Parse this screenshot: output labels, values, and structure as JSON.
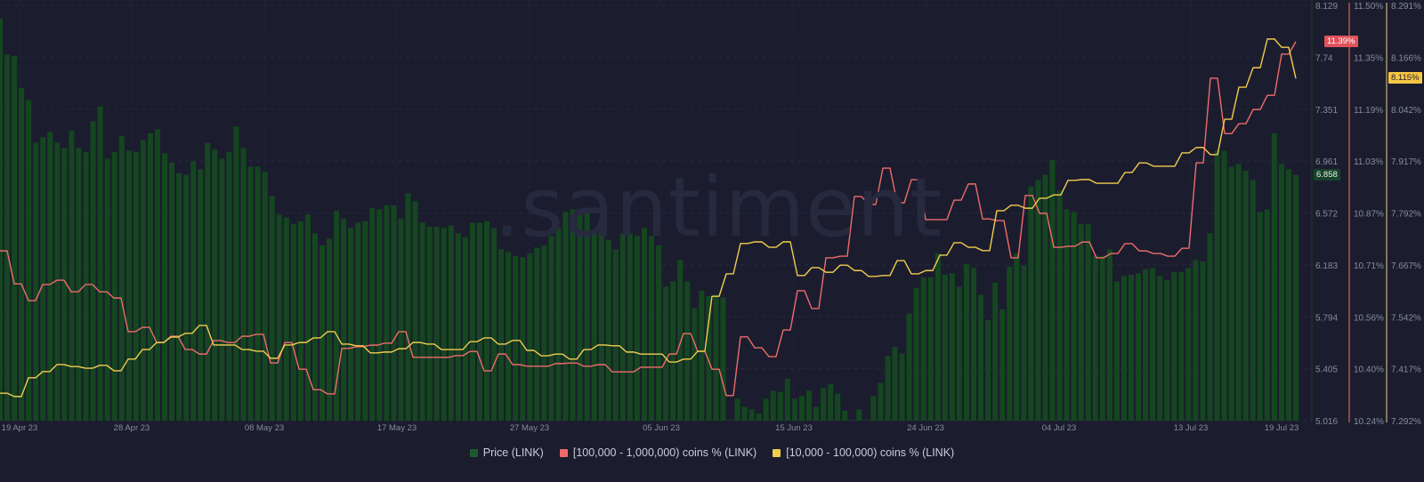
{
  "chart_data": {
    "type": "bar+line",
    "watermark": ".santiment",
    "x_tick_labels": [
      "19 Apr 23",
      "28 Apr 23",
      "08 May 23",
      "17 May 23",
      "27 May 23",
      "05 Jun 23",
      "15 Jun 23",
      "24 Jun 23",
      "04 Jul 23",
      "13 Jul 23",
      "19 Jul 23"
    ],
    "x_range": [
      "19 Apr 23",
      "19 Jul 23"
    ],
    "grid": true,
    "legend_position": "bottom",
    "axes": {
      "price": {
        "ticks": [
          "8.129",
          "7.74",
          "7.351",
          "6.961",
          "6.572",
          "6.183",
          "5.794",
          "5.405",
          "5.016"
        ],
        "ylim": [
          5.016,
          8.129
        ],
        "current_label": "6.858",
        "color": "#1f5a2c"
      },
      "whales_100k_1m": {
        "ticks": [
          "11.50%",
          "11.35%",
          "11.19%",
          "11.03%",
          "10.87%",
          "10.71%",
          "10.56%",
          "10.40%",
          "10.24%"
        ],
        "ylim": [
          10.24,
          11.5
        ],
        "current_label": "11.39%",
        "color": "#ef6b6b"
      },
      "holders_10k_100k": {
        "ticks": [
          "8.291%",
          "8.166%",
          "8.042%",
          "7.917%",
          "7.792%",
          "7.667%",
          "7.542%",
          "7.417%",
          "7.292%"
        ],
        "ylim": [
          7.292,
          8.291
        ],
        "current_label": "8.115%",
        "color": "#f2cc4e"
      }
    },
    "series": [
      {
        "name": "Price (LINK)",
        "type": "bar",
        "axis": "price",
        "color": "#14461f",
        "values": [
          8.03,
          7.76,
          7.75,
          7.51,
          7.42,
          7.1,
          7.14,
          7.18,
          7.1,
          7.06,
          7.19,
          7.06,
          7.03,
          7.26,
          7.37,
          6.98,
          7.03,
          7.15,
          7.04,
          7.03,
          7.12,
          7.17,
          7.2,
          7.02,
          6.95,
          6.87,
          6.86,
          6.96,
          6.9,
          7.1,
          7.05,
          6.98,
          7.03,
          7.22,
          7.06,
          6.92,
          6.92,
          6.88,
          6.7,
          6.56,
          6.54,
          6.49,
          6.51,
          6.56,
          6.42,
          6.33,
          6.38,
          6.59,
          6.53,
          6.46,
          6.5,
          6.51,
          6.61,
          6.6,
          6.63,
          6.63,
          6.53,
          6.72,
          6.66,
          6.5,
          6.47,
          6.47,
          6.46,
          6.48,
          6.42,
          6.39,
          6.5,
          6.5,
          6.51,
          6.46,
          6.3,
          6.28,
          6.25,
          6.24,
          6.27,
          6.31,
          6.33,
          6.4,
          6.46,
          6.58,
          6.6,
          6.6,
          6.58,
          6.44,
          6.44,
          6.37,
          6.3,
          6.42,
          6.42,
          6.4,
          6.46,
          6.4,
          6.33,
          6.02,
          6.06,
          6.22,
          6.06,
          5.86,
          5.99,
          5.95,
          5.96,
          5.94,
          5.02,
          5.18,
          5.12,
          5.1,
          5.07,
          5.18,
          5.24,
          5.23,
          5.33,
          5.18,
          5.2,
          5.24,
          5.12,
          5.26,
          5.29,
          5.22,
          5.09,
          5.02,
          5.1,
          5.02,
          5.2,
          5.3,
          5.5,
          5.57,
          5.52,
          5.82,
          6.01,
          6.09,
          6.09,
          6.27,
          6.11,
          6.12,
          6.02,
          6.19,
          6.16,
          5.96,
          5.77,
          6.05,
          5.85,
          6.17,
          6.27,
          6.18,
          6.77,
          6.82,
          6.86,
          6.97,
          6.74,
          6.6,
          6.58,
          6.49,
          6.49,
          6.25,
          6.25,
          6.3,
          6.06,
          6.1,
          6.11,
          6.12,
          6.15,
          6.16,
          6.1,
          6.07,
          6.13,
          6.13,
          6.16,
          6.22,
          6.21,
          6.42,
          7.04,
          7.04,
          6.92,
          6.94,
          6.89,
          6.82,
          6.58,
          6.6,
          7.17,
          6.94,
          6.9,
          6.858
        ]
      },
      {
        "name": "[100,000  - 1,000,000) coins % (LINK)",
        "type": "line",
        "axis": "whales_100k_1m",
        "color": "#ef6b6b",
        "values": [
          10.755,
          10.655,
          10.604,
          10.653,
          10.666,
          10.631,
          10.653,
          10.631,
          10.612,
          10.51,
          10.523,
          10.477,
          10.496,
          10.456,
          10.442,
          10.483,
          10.477,
          10.496,
          10.502,
          10.415,
          10.477,
          10.396,
          10.334,
          10.321,
          10.459,
          10.464,
          10.469,
          10.475,
          10.51,
          10.432,
          10.432,
          10.432,
          10.437,
          10.45,
          10.391,
          10.442,
          10.41,
          10.405,
          10.405,
          10.413,
          10.415,
          10.405,
          10.41,
          10.388,
          10.388,
          10.402,
          10.402,
          10.442,
          10.504,
          10.45,
          10.396,
          10.316,
          10.494,
          10.461,
          10.434,
          10.515,
          10.634,
          10.58,
          10.734,
          10.739,
          10.92,
          10.896,
          11.006,
          10.901,
          10.971,
          10.85,
          10.85,
          10.909,
          10.958,
          10.852,
          10.847,
          10.734,
          10.923,
          10.869,
          10.766,
          10.769,
          10.782,
          10.734,
          10.747,
          10.777,
          10.755,
          10.747,
          10.739,
          10.763,
          11.022,
          11.279,
          11.111,
          11.141,
          11.184,
          11.227,
          11.352,
          11.39
        ]
      },
      {
        "name": "[10,000 - 100,000) coins % (LINK)",
        "type": "line",
        "axis": "holders_10k_100k",
        "color": "#f2cc4e",
        "values": [
          7.358,
          7.35,
          7.395,
          7.41,
          7.427,
          7.422,
          7.418,
          7.425,
          7.412,
          7.44,
          7.463,
          7.48,
          7.493,
          7.502,
          7.521,
          7.474,
          7.474,
          7.463,
          7.459,
          7.442,
          7.474,
          7.48,
          7.491,
          7.506,
          7.476,
          7.472,
          7.455,
          7.457,
          7.465,
          7.48,
          7.476,
          7.463,
          7.463,
          7.482,
          7.491,
          7.476,
          7.485,
          7.461,
          7.448,
          7.452,
          7.44,
          7.463,
          7.474,
          7.472,
          7.457,
          7.452,
          7.452,
          7.433,
          7.44,
          7.459,
          7.591,
          7.645,
          7.718,
          7.722,
          7.709,
          7.722,
          7.641,
          7.66,
          7.649,
          7.666,
          7.653,
          7.639,
          7.641,
          7.677,
          7.645,
          7.653,
          7.69,
          7.72,
          7.709,
          7.701,
          7.797,
          7.81,
          7.803,
          7.827,
          7.835,
          7.87,
          7.872,
          7.863,
          7.863,
          7.889,
          7.912,
          7.904,
          7.904,
          7.936,
          7.949,
          7.932,
          8.017,
          8.094,
          8.141,
          8.21,
          8.19,
          8.115
        ]
      }
    ]
  }
}
